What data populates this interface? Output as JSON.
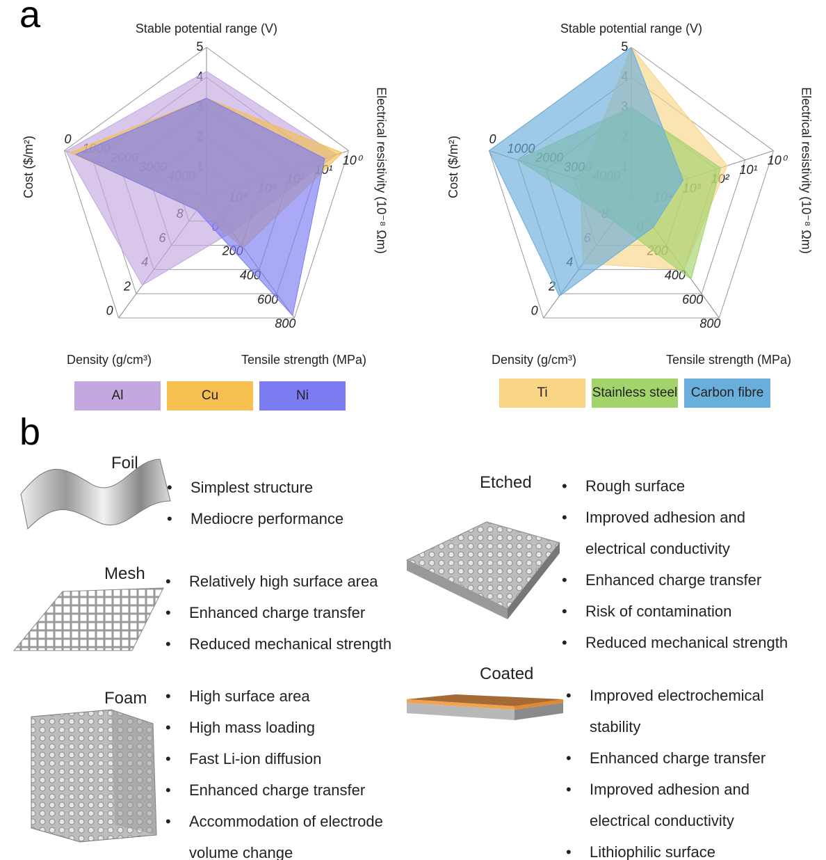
{
  "panel_a": {
    "label": "a"
  },
  "chart_data": [
    {
      "type": "radar",
      "axes": [
        {
          "label": "Stable potential range (V)",
          "lim": [
            0,
            5
          ],
          "ticks": [
            1,
            2,
            3,
            4,
            5
          ]
        },
        {
          "label": "Electrical resistivity (10⁻⁸ Ωm)",
          "log": true,
          "lim": [
            100000,
            1
          ],
          "ticks": [
            {
              "value": 10000,
              "label": "10⁴"
            },
            {
              "value": 1000,
              "label": "10³"
            },
            {
              "value": 100,
              "label": "10²"
            },
            {
              "value": 10,
              "label": "10¹"
            },
            {
              "value": 1,
              "label": "10⁰"
            }
          ]
        },
        {
          "label": "Tensile strength (MPa)",
          "lim": [
            -200,
            800
          ],
          "ticks": [
            0,
            200,
            400,
            600,
            800
          ]
        },
        {
          "label": "Density (g/cm³)",
          "lim": [
            10,
            0
          ],
          "ticks": [
            8,
            6,
            4,
            2,
            0
          ]
        },
        {
          "label": "Cost ($/m²)",
          "lim": [
            5000,
            0
          ],
          "ticks": [
            4000,
            3000,
            2000,
            1000,
            0
          ]
        }
      ],
      "series": [
        {
          "name": "Al",
          "color": "#c3a8e0",
          "values": [
            4.2,
            2.65,
            90,
            2.7,
            50
          ]
        },
        {
          "name": "Cu",
          "color": "#f5c04f",
          "values": [
            3.3,
            1.68,
            220,
            8.96,
            200
          ]
        },
        {
          "name": "Ni",
          "color": "#7b7bf2",
          "values": [
            3.3,
            6.99,
            780,
            8.9,
            400
          ]
        }
      ]
    },
    {
      "type": "radar",
      "axes": [
        {
          "label": "Stable potential range (V)",
          "lim": [
            0,
            5
          ],
          "ticks": [
            1,
            2,
            3,
            4,
            5
          ]
        },
        {
          "label": "Electrical resistivity (10⁻⁸ Ωm)",
          "log": true,
          "lim": [
            100000,
            1
          ],
          "ticks": [
            {
              "value": 10000,
              "label": "10⁴"
            },
            {
              "value": 1000,
              "label": "10³"
            },
            {
              "value": 100,
              "label": "10²"
            },
            {
              "value": 10,
              "label": "10¹"
            },
            {
              "value": 1,
              "label": "10⁰"
            }
          ]
        },
        {
          "label": "Tensile strength (MPa)",
          "lim": [
            -200,
            800
          ],
          "ticks": [
            0,
            200,
            400,
            600,
            800
          ]
        },
        {
          "label": "Density (g/cm³)",
          "lim": [
            10,
            0
          ],
          "ticks": [
            8,
            6,
            4,
            2,
            0
          ]
        },
        {
          "label": "Cost ($/m²)",
          "lim": [
            5000,
            0
          ],
          "ticks": [
            4000,
            3000,
            2000,
            1000,
            0
          ]
        }
      ],
      "series": [
        {
          "name": "Ti",
          "color": "#f8d587",
          "values": [
            5,
            42,
            400,
            4.5,
            3200
          ]
        },
        {
          "name": "Stainless steel",
          "color": "#a3d36b",
          "values": [
            3,
            72,
            480,
            8,
            1000
          ]
        },
        {
          "name": "Carbon fibre",
          "color": "#6aaedb",
          "values": [
            5,
            1500,
            50,
            1.8,
            0
          ]
        }
      ]
    }
  ],
  "panel_b": {
    "label": "b",
    "structures": [
      {
        "name": "Foil",
        "bullets": [
          "Simplest structure",
          "Mediocre performance"
        ]
      },
      {
        "name": "Mesh",
        "bullets": [
          "Relatively high surface area",
          "Enhanced charge transfer",
          "Reduced mechanical strength"
        ]
      },
      {
        "name": "Foam",
        "bullets": [
          "High surface area",
          "High mass loading",
          "Fast Li-ion diffusion",
          "Enhanced charge transfer",
          "Accommodation of electrode volume change"
        ]
      },
      {
        "name": "Etched",
        "bullets": [
          "Rough surface",
          "Improved adhesion and electrical conductivity",
          "Enhanced charge transfer",
          "Risk of contamination",
          "Reduced mechanical strength"
        ]
      },
      {
        "name": "Coated",
        "bullets": [
          "Improved electrochemical stability",
          "Enhanced charge transfer",
          "Improved adhesion and electrical conductivity",
          "Lithiophilic surface"
        ]
      }
    ]
  }
}
